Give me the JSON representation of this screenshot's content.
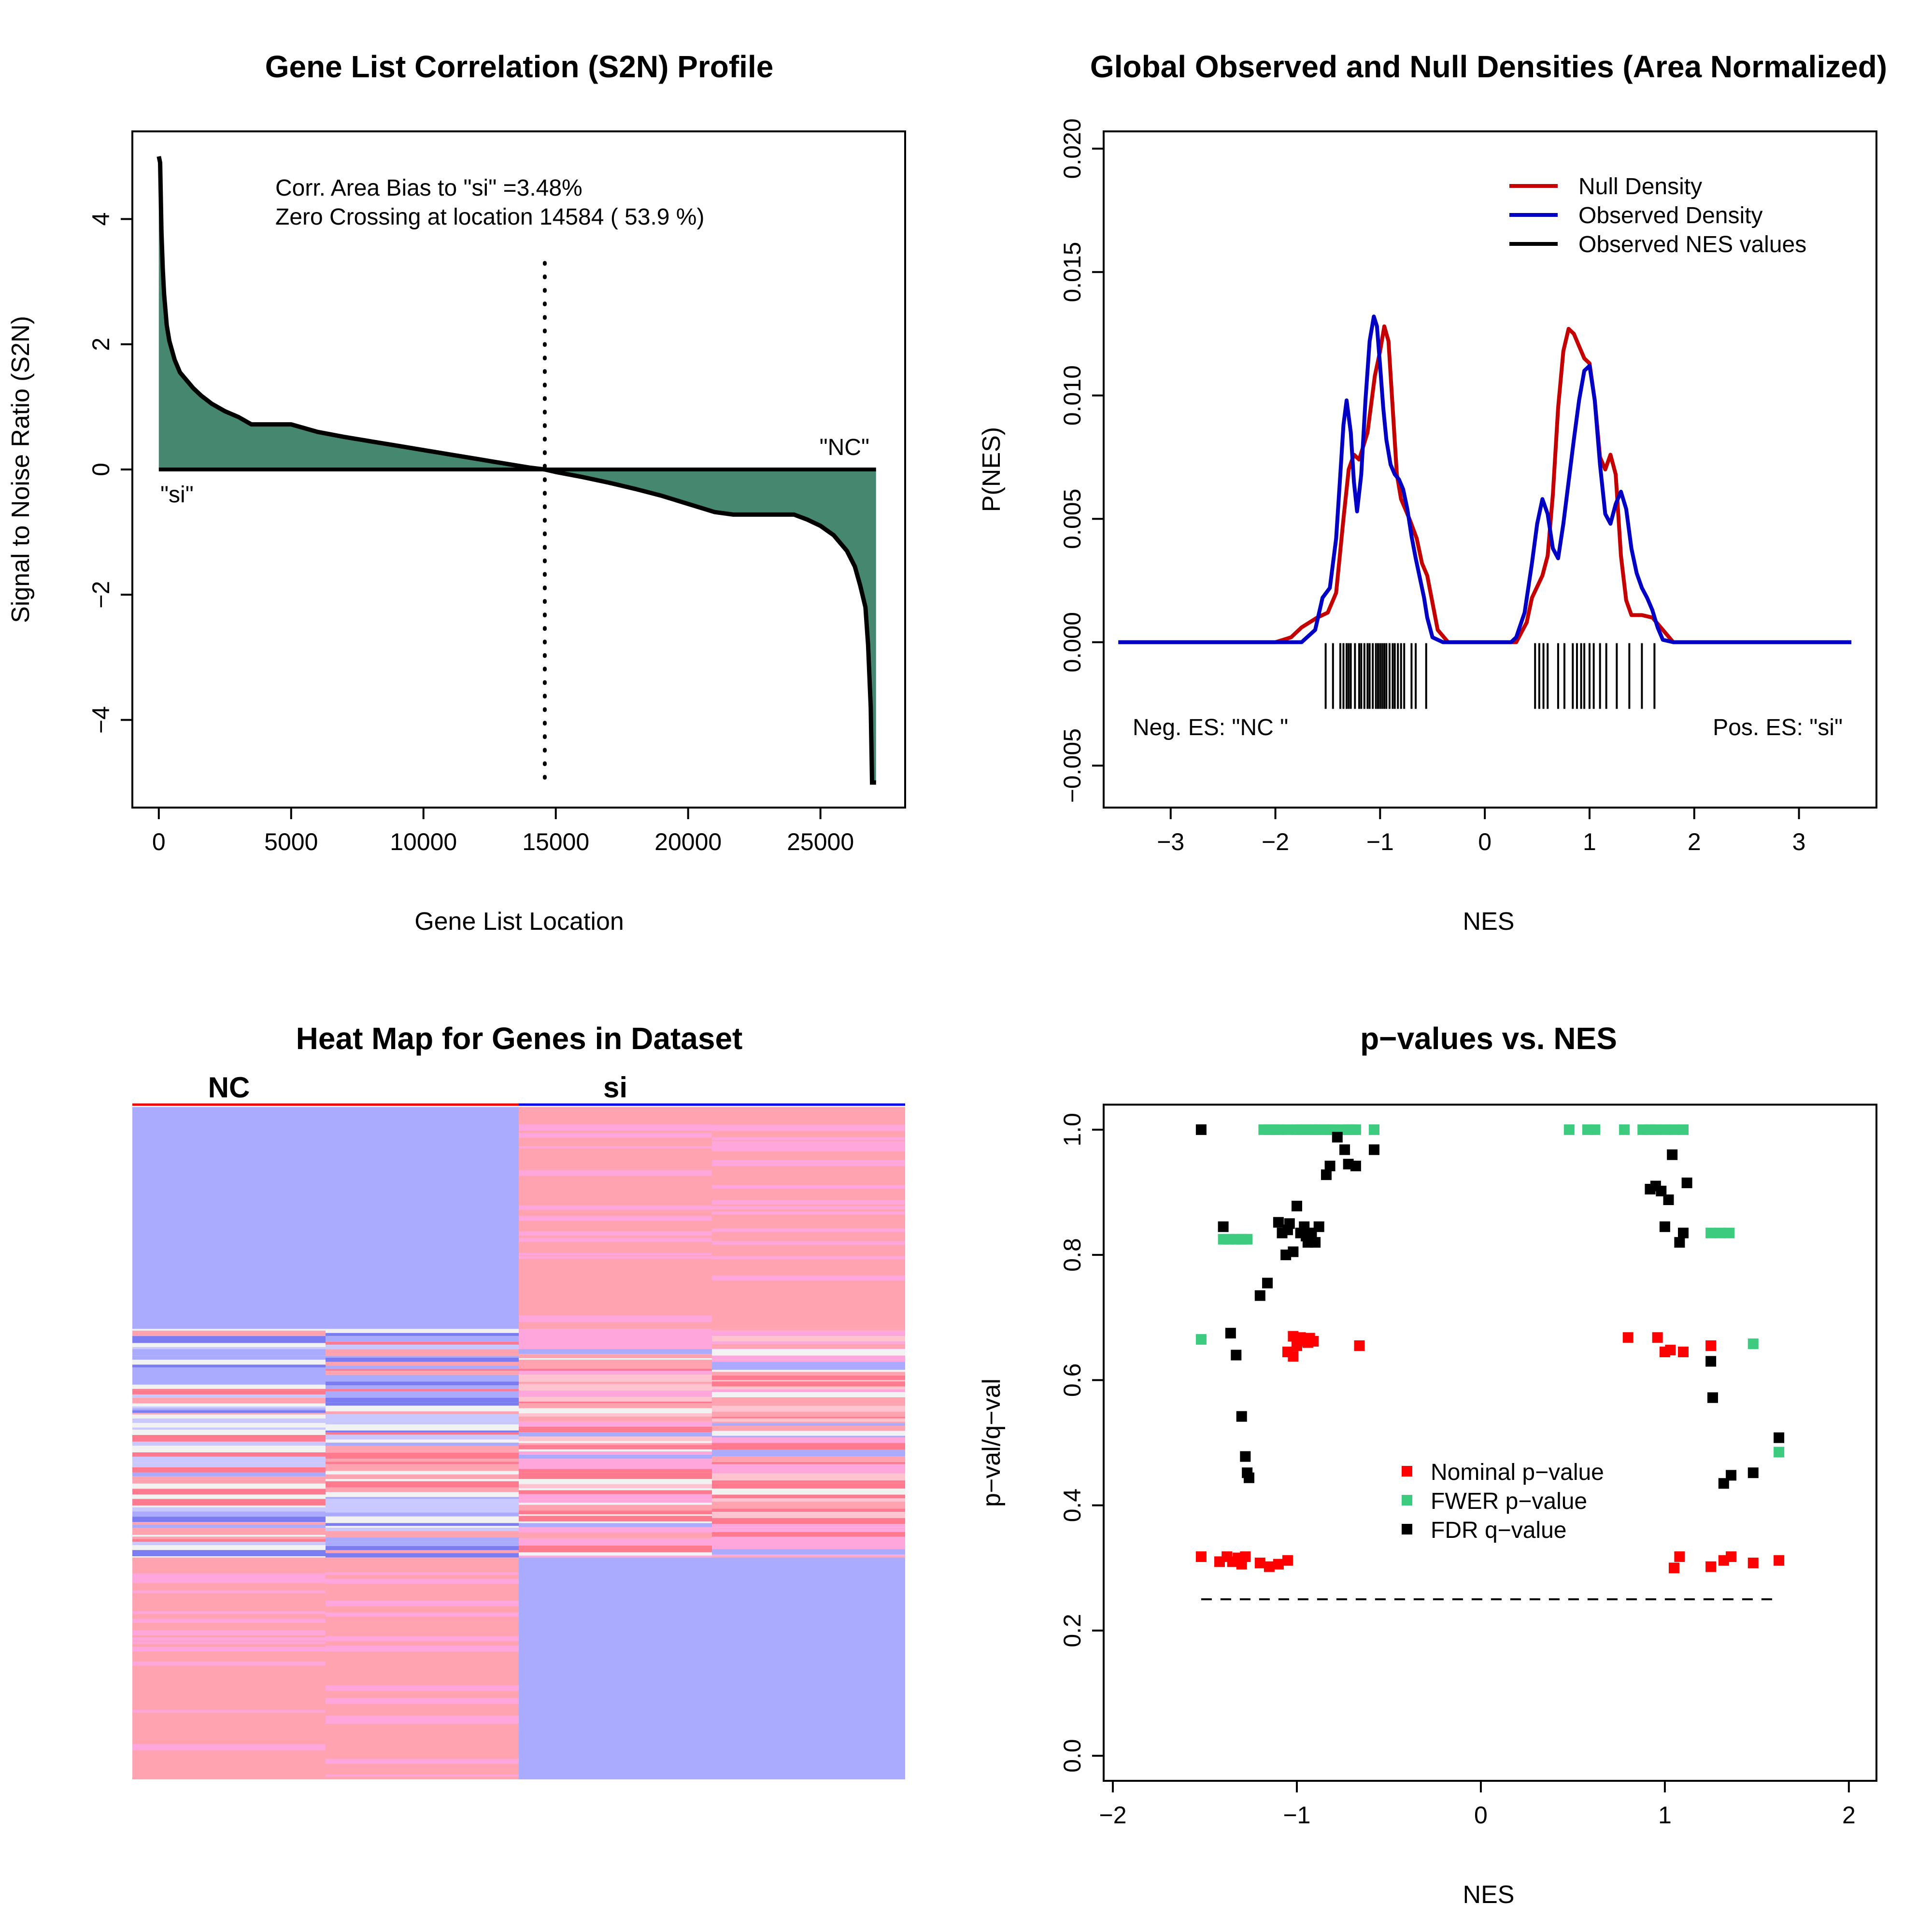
{
  "colors": {
    "fill_green": "#46886F",
    "null_red": "#C40000",
    "obs_blue": "#0000C4",
    "nominal": "#FF0000",
    "fwer": "#3DCC7F",
    "fdr": "#000000",
    "hm_blue": "#AAAAFF",
    "hm_pink": "#FFA3B1",
    "hm_magenta": "#FFA6DD",
    "hm_white": "#F2F2F2",
    "hm_deepblue": "#7C7CF2",
    "hm_deeppink": "#FF7A8E"
  },
  "chart_data": [
    {
      "type": "area",
      "title": "Gene List Correlation (S2N) Profile",
      "xlabel": "Gene List Location",
      "ylabel": "Signal to Noise Ratio (S2N)",
      "xlim": [
        -1000,
        28200
      ],
      "ylim": [
        -5.4,
        5.4
      ],
      "xticks": [
        0,
        5000,
        10000,
        15000,
        20000,
        25000
      ],
      "xtick_labels": [
        "0",
        "5000",
        "10000",
        "15000",
        "20000",
        "25000"
      ],
      "yticks": [
        -4,
        -2,
        0,
        2,
        4
      ],
      "ytick_labels": [
        "−4",
        "−2",
        "0",
        "2",
        "4"
      ],
      "annotations": [
        "Corr. Area Bias to \"si\" =3.48%",
        "Zero Crossing at location  14584  ( 53.9  %)"
      ],
      "left_label": "\"si\"",
      "right_label": "\"NC\"",
      "zero_crossing": 14584,
      "curve": {
        "x": [
          0,
          50,
          100,
          150,
          200,
          300,
          400,
          600,
          800,
          1000,
          1300,
          1600,
          2000,
          2500,
          3000,
          3500,
          4000,
          4500,
          5000,
          6000,
          7000,
          8000,
          9000,
          10000,
          11000,
          12000,
          13000,
          14000,
          14584,
          15000,
          16000,
          17000,
          18000,
          19000,
          20000,
          21000,
          21700,
          22000,
          23000,
          24000,
          24500,
          25000,
          25500,
          26000,
          26300,
          26500,
          26700,
          26800,
          26900,
          26950,
          27000,
          27100
        ],
        "y": [
          5.0,
          4.9,
          3.8,
          3.2,
          2.8,
          2.3,
          2.05,
          1.75,
          1.55,
          1.45,
          1.3,
          1.18,
          1.05,
          0.93,
          0.84,
          0.72,
          0.72,
          0.72,
          0.72,
          0.6,
          0.52,
          0.45,
          0.38,
          0.31,
          0.24,
          0.17,
          0.1,
          0.03,
          0.0,
          -0.04,
          -0.12,
          -0.21,
          -0.31,
          -0.42,
          -0.55,
          -0.68,
          -0.72,
          -0.72,
          -0.72,
          -0.72,
          -0.8,
          -0.9,
          -1.05,
          -1.3,
          -1.55,
          -1.85,
          -2.2,
          -2.8,
          -3.8,
          -5.0,
          -5.0,
          -5.0
        ]
      }
    },
    {
      "type": "line",
      "title": "Global Observed and Null Densities (Area Normalized)",
      "xlabel": "NES",
      "ylabel": "P(NES)",
      "xlim": [
        -3.64,
        3.74
      ],
      "ylim": [
        -0.0067,
        0.0207
      ],
      "xticks": [
        -3,
        -2,
        -1,
        0,
        1,
        2,
        3
      ],
      "xtick_labels": [
        "−3",
        "−2",
        "−1",
        "0",
        "1",
        "2",
        "3"
      ],
      "yticks": [
        -0.005,
        0.0,
        0.005,
        0.01,
        0.015,
        0.02
      ],
      "ytick_labels": [
        "−0.005",
        "0.000",
        "0.005",
        "0.010",
        "0.015",
        "0.020"
      ],
      "legend": [
        "Null Density",
        "Observed Density",
        "Observed NES values"
      ],
      "legend_position": "top-right",
      "neg_label": "Neg. ES: \"NC \"",
      "pos_label": "Pos. ES: \"si\"",
      "series": [
        {
          "name": "Null Density",
          "x": [
            -3.5,
            -2.0,
            -1.85,
            -1.75,
            -1.6,
            -1.5,
            -1.42,
            -1.35,
            -1.3,
            -1.25,
            -1.2,
            -1.12,
            -1.05,
            -1.0,
            -0.96,
            -0.92,
            -0.88,
            -0.84,
            -0.8,
            -0.72,
            -0.65,
            -0.6,
            -0.55,
            -0.5,
            -0.45,
            -0.35,
            -0.25,
            0.0,
            0.3,
            0.4,
            0.45,
            0.55,
            0.6,
            0.65,
            0.7,
            0.75,
            0.8,
            0.85,
            0.9,
            0.95,
            1.0,
            1.05,
            1.1,
            1.15,
            1.2,
            1.25,
            1.3,
            1.35,
            1.4,
            1.45,
            1.5,
            1.6,
            1.7,
            1.8,
            3.5
          ],
          "y": [
            0.0,
            0.0,
            0.0002,
            0.0006,
            0.001,
            0.0012,
            0.002,
            0.005,
            0.007,
            0.0076,
            0.0074,
            0.0085,
            0.0108,
            0.0118,
            0.0128,
            0.0122,
            0.0095,
            0.0068,
            0.0058,
            0.005,
            0.0042,
            0.0032,
            0.0027,
            0.0016,
            0.0005,
            0.0,
            0.0,
            0.0,
            0.0,
            0.0008,
            0.0018,
            0.0027,
            0.0035,
            0.006,
            0.0095,
            0.0118,
            0.0127,
            0.0125,
            0.012,
            0.0115,
            0.0113,
            0.0098,
            0.0075,
            0.007,
            0.0076,
            0.0068,
            0.0035,
            0.0017,
            0.0011,
            0.0011,
            0.0011,
            0.001,
            0.0005,
            0.0,
            0.0
          ]
        },
        {
          "name": "Observed Density",
          "x": [
            -3.5,
            -1.9,
            -1.75,
            -1.62,
            -1.55,
            -1.48,
            -1.42,
            -1.38,
            -1.35,
            -1.32,
            -1.28,
            -1.25,
            -1.22,
            -1.18,
            -1.14,
            -1.1,
            -1.06,
            -1.03,
            -1.0,
            -0.97,
            -0.94,
            -0.9,
            -0.86,
            -0.82,
            -0.78,
            -0.74,
            -0.7,
            -0.66,
            -0.62,
            -0.58,
            -0.55,
            -0.5,
            -0.4,
            -0.3,
            0.25,
            0.3,
            0.38,
            0.45,
            0.5,
            0.55,
            0.6,
            0.65,
            0.7,
            0.75,
            0.8,
            0.85,
            0.9,
            0.95,
            1.0,
            1.05,
            1.1,
            1.15,
            1.2,
            1.25,
            1.3,
            1.35,
            1.4,
            1.45,
            1.5,
            1.55,
            1.6,
            1.65,
            1.7,
            1.8,
            1.9,
            3.5
          ],
          "y": [
            0.0,
            0.0,
            0.0,
            0.0005,
            0.0018,
            0.0022,
            0.0042,
            0.0068,
            0.0088,
            0.0098,
            0.0085,
            0.0065,
            0.0053,
            0.0068,
            0.0098,
            0.0122,
            0.0132,
            0.0128,
            0.0112,
            0.0095,
            0.0082,
            0.0072,
            0.0068,
            0.0066,
            0.0062,
            0.0054,
            0.0043,
            0.0034,
            0.0026,
            0.0018,
            0.001,
            0.0002,
            0.0,
            0.0,
            0.0,
            0.0002,
            0.0012,
            0.0032,
            0.0048,
            0.0058,
            0.0052,
            0.0038,
            0.0034,
            0.0048,
            0.0065,
            0.0082,
            0.0098,
            0.011,
            0.0112,
            0.0098,
            0.0072,
            0.0052,
            0.0048,
            0.0056,
            0.0061,
            0.0054,
            0.0038,
            0.0028,
            0.0022,
            0.0018,
            0.0013,
            0.0006,
            0.0001,
            0.0,
            0.0,
            0.0
          ]
        }
      ],
      "observed_nes": [
        -1.52,
        -1.45,
        -1.38,
        -1.35,
        -1.32,
        -1.3,
        -1.28,
        -1.24,
        -1.2,
        -1.18,
        -1.15,
        -1.12,
        -1.1,
        -1.07,
        -1.04,
        -1.02,
        -1.0,
        -0.98,
        -0.96,
        -0.94,
        -0.91,
        -0.88,
        -0.86,
        -0.83,
        -0.8,
        -0.77,
        -0.7,
        -0.66,
        -0.56,
        0.48,
        0.52,
        0.56,
        0.6,
        0.7,
        0.76,
        0.84,
        0.88,
        0.92,
        0.95,
        1.0,
        1.04,
        1.1,
        1.16,
        1.26,
        1.38,
        1.5,
        1.62
      ]
    },
    {
      "type": "heatmap",
      "title": "Heat Map for Genes in Dataset",
      "class_labels": [
        "NC",
        "si"
      ],
      "columns": 4,
      "rows": [
        {
          "end": 0.33,
          "cells": [
            "blue",
            "blue",
            "pink",
            "pink"
          ]
        },
        {
          "end": 0.36,
          "cells": [
            "mix",
            "mix",
            "pink",
            "mixp"
          ]
        },
        {
          "end": 0.67,
          "cells": [
            "mix",
            "mix",
            "mixp",
            "mixp"
          ]
        },
        {
          "end": 1.0,
          "cells": [
            "pink",
            "pink",
            "blue",
            "blue"
          ]
        }
      ]
    },
    {
      "type": "scatter",
      "title": "p−values vs. NES",
      "xlabel": "NES",
      "ylabel": "p−val/q−val",
      "xlim": [
        -2.05,
        2.15
      ],
      "ylim": [
        -0.04,
        1.04
      ],
      "xticks": [
        -2,
        -1,
        0,
        1,
        2
      ],
      "xtick_labels": [
        "−2",
        "−1",
        "0",
        "1",
        "2"
      ],
      "yticks": [
        0.0,
        0.2,
        0.4,
        0.6,
        0.8,
        1.0
      ],
      "ytick_labels": [
        "0.0",
        "0.2",
        "0.4",
        "0.6",
        "0.8",
        "1.0"
      ],
      "threshold": 0.25,
      "threshold_range": [
        -1.52,
        1.62
      ],
      "legend": [
        "Nominal p−value",
        "FWER p−value",
        "FDR q−value"
      ],
      "legend_position": "center-right",
      "series": [
        {
          "name": "Nominal p−value",
          "x": [
            -1.52,
            -1.42,
            -1.38,
            -1.35,
            -1.32,
            -1.3,
            -1.28,
            -1.2,
            -1.15,
            -1.1,
            -1.05,
            -1.02,
            -1.05,
            -1.0,
            -0.98,
            -0.95,
            -0.93,
            -0.91,
            -0.94,
            -1.02,
            -0.66,
            0.8,
            0.96,
            1.0,
            1.03,
            1.1,
            1.25,
            1.25,
            1.32,
            1.36,
            1.48,
            1.62,
            1.05,
            1.08
          ],
          "y": [
            0.318,
            0.31,
            0.318,
            0.31,
            0.316,
            0.306,
            0.318,
            0.308,
            0.302,
            0.306,
            0.312,
            0.67,
            0.645,
            0.655,
            0.668,
            0.662,
            0.667,
            0.662,
            0.66,
            0.638,
            0.655,
            0.668,
            0.668,
            0.645,
            0.648,
            0.645,
            0.655,
            0.302,
            0.312,
            0.318,
            0.308,
            0.312,
            0.3,
            0.318
          ]
        },
        {
          "name": "FWER p−value",
          "x": [
            -1.18,
            -1.15,
            -1.12,
            -1.1,
            -1.05,
            -1.0,
            -0.98,
            -0.95,
            -0.92,
            -0.9,
            -0.88,
            -0.85,
            -0.82,
            -0.8,
            -0.75,
            -0.72,
            -0.7,
            -0.68,
            -0.58,
            -1.4,
            -1.37,
            -1.33,
            -1.3,
            -1.27,
            -1.52,
            0.48,
            0.58,
            0.62,
            0.78,
            0.88,
            0.92,
            0.95,
            1.0,
            1.05,
            1.1,
            1.25,
            1.3,
            1.35,
            1.48,
            1.62
          ],
          "y": [
            1.0,
            1.0,
            1.0,
            1.0,
            1.0,
            1.0,
            1.0,
            1.0,
            1.0,
            1.0,
            1.0,
            1.0,
            1.0,
            1.0,
            1.0,
            1.0,
            1.0,
            1.0,
            1.0,
            0.825,
            0.825,
            0.825,
            0.825,
            0.825,
            0.665,
            1.0,
            1.0,
            1.0,
            1.0,
            1.0,
            1.0,
            1.0,
            1.0,
            1.0,
            1.0,
            0.835,
            0.835,
            0.835,
            0.658,
            0.485
          ]
        },
        {
          "name": "FDR q−value",
          "x": [
            -1.52,
            -1.4,
            -1.36,
            -1.33,
            -1.3,
            -1.28,
            -1.27,
            -1.26,
            -1.2,
            -1.16,
            -1.1,
            -1.08,
            -1.06,
            -1.04,
            -1.02,
            -1.0,
            -0.98,
            -0.96,
            -0.94,
            -0.92,
            -0.9,
            -0.88,
            -0.84,
            -0.82,
            -0.78,
            -0.74,
            -0.72,
            -0.68,
            -0.58,
            0.92,
            0.95,
            0.98,
            1.0,
            1.02,
            1.04,
            1.08,
            1.1,
            1.12,
            1.25,
            1.26,
            1.32,
            1.36,
            1.48,
            1.62,
            -1.05,
            -0.95
          ],
          "y": [
            1.0,
            0.845,
            0.675,
            0.64,
            0.542,
            0.478,
            0.452,
            0.444,
            0.735,
            0.755,
            0.852,
            0.835,
            0.8,
            0.85,
            0.805,
            0.878,
            0.835,
            0.845,
            0.82,
            0.835,
            0.82,
            0.845,
            0.928,
            0.942,
            0.988,
            0.968,
            0.945,
            0.942,
            0.968,
            0.905,
            0.91,
            0.902,
            0.845,
            0.888,
            0.96,
            0.82,
            0.835,
            0.915,
            0.63,
            0.572,
            0.435,
            0.448,
            0.452,
            0.508,
            0.84,
            0.83
          ]
        }
      ]
    }
  ]
}
